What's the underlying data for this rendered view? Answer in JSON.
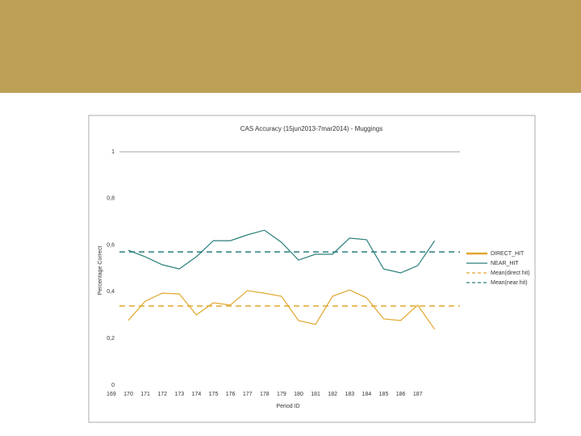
{
  "chart_data": {
    "type": "line",
    "title": "CAS Accuracy (15jun2013-7mar2014) - Muggings",
    "x_label": "Period ID",
    "y_label": "Percentage Correct",
    "categories": [
      "169",
      "170",
      "171",
      "172",
      "173",
      "174",
      "175",
      "176",
      "177",
      "178",
      "179",
      "180",
      "181",
      "182",
      "183",
      "184",
      "185",
      "186",
      "187"
    ],
    "series": [
      {
        "name": "DIRECT_HIT",
        "color": "#e0a72e",
        "values": [
          0.277,
          0.36,
          0.394,
          0.391,
          0.301,
          0.353,
          0.343,
          0.405,
          0.394,
          0.381,
          0.277,
          0.26,
          0.381,
          0.408,
          0.374,
          0.284,
          0.277,
          0.343,
          0.239
        ]
      },
      {
        "name": "NEAR_HIT",
        "color": "#2a7f7c",
        "values": [
          0.578,
          0.55,
          0.516,
          0.498,
          0.55,
          0.619,
          0.619,
          0.644,
          0.664,
          0.612,
          0.536,
          0.561,
          0.561,
          0.63,
          0.623,
          0.498,
          0.481,
          0.512,
          0.619
        ]
      }
    ],
    "reference_lines": [
      {
        "name": "Mean(direct hit)",
        "color": "#e0a72e",
        "value": 0.339
      },
      {
        "name": "Mean(near hit)",
        "color": "#2a7f7c",
        "value": 0.571
      }
    ],
    "ylim": [
      0,
      1
    ],
    "yticks": [
      0,
      {
        "value": 0.2,
        "label": "0,2"
      },
      {
        "value": 0.4,
        "label": "0,4"
      },
      {
        "value": 0.6,
        "label": "0,6"
      },
      {
        "value": 0.8,
        "label": "0,8"
      },
      1
    ],
    "legend": "right"
  }
}
